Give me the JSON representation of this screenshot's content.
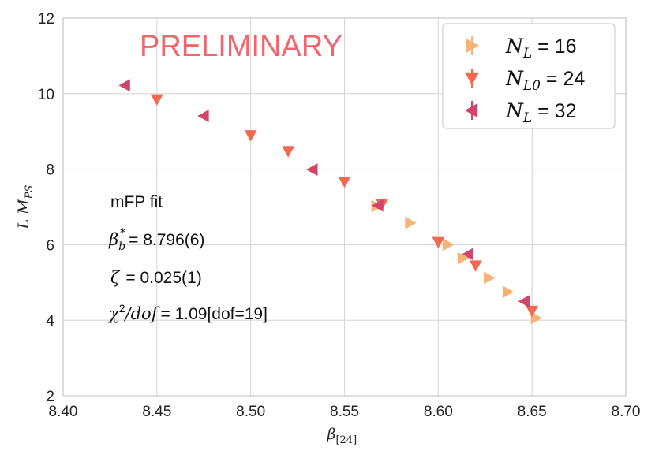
{
  "chart_data": {
    "type": "scatter",
    "xlabel": "β[24]",
    "ylabel": "L MPS",
    "xlim": [
      8.4,
      8.7
    ],
    "ylim": [
      2,
      12
    ],
    "xticks": [
      "8.40",
      "8.45",
      "8.50",
      "8.55",
      "8.60",
      "8.65",
      "8.70"
    ],
    "yticks": [
      "2",
      "4",
      "6",
      "8",
      "10",
      "12"
    ],
    "watermark": "PRELIMINARY",
    "annotations": {
      "fit_title": "mFP fit",
      "beta_value": "= 8.796(6)",
      "zeta_value": "= 0.025(1)",
      "chi2_value": "= 1.09[dof=19]"
    },
    "legend_placement": "top-right",
    "series": [
      {
        "name": "N_L = 16",
        "legend_value": "16",
        "marker": "triangle-right",
        "color": "#f9b276",
        "points": [
          {
            "x": 8.567,
            "y": 7.02
          },
          {
            "x": 8.585,
            "y": 6.58
          },
          {
            "x": 8.605,
            "y": 6.0
          },
          {
            "x": 8.613,
            "y": 5.64
          },
          {
            "x": 8.627,
            "y": 5.12
          },
          {
            "x": 8.637,
            "y": 4.75
          },
          {
            "x": 8.652,
            "y": 4.06
          }
        ]
      },
      {
        "name": "N_L0 = 24",
        "legend_value": "24",
        "marker": "triangle-down",
        "color": "#f26a4f",
        "points": [
          {
            "x": 8.45,
            "y": 9.85
          },
          {
            "x": 8.5,
            "y": 8.9
          },
          {
            "x": 8.52,
            "y": 8.48
          },
          {
            "x": 8.55,
            "y": 7.67
          },
          {
            "x": 8.57,
            "y": 7.08
          },
          {
            "x": 8.6,
            "y": 6.07
          },
          {
            "x": 8.62,
            "y": 5.45
          },
          {
            "x": 8.65,
            "y": 4.25
          }
        ]
      },
      {
        "name": "N_L = 32",
        "legend_value": "32",
        "marker": "triangle-left",
        "color": "#d2446a",
        "points": [
          {
            "x": 8.433,
            "y": 10.22
          },
          {
            "x": 8.475,
            "y": 9.41
          },
          {
            "x": 8.533,
            "y": 7.99
          },
          {
            "x": 8.568,
            "y": 7.04
          },
          {
            "x": 8.616,
            "y": 5.75
          },
          {
            "x": 8.646,
            "y": 4.5
          }
        ]
      }
    ]
  }
}
